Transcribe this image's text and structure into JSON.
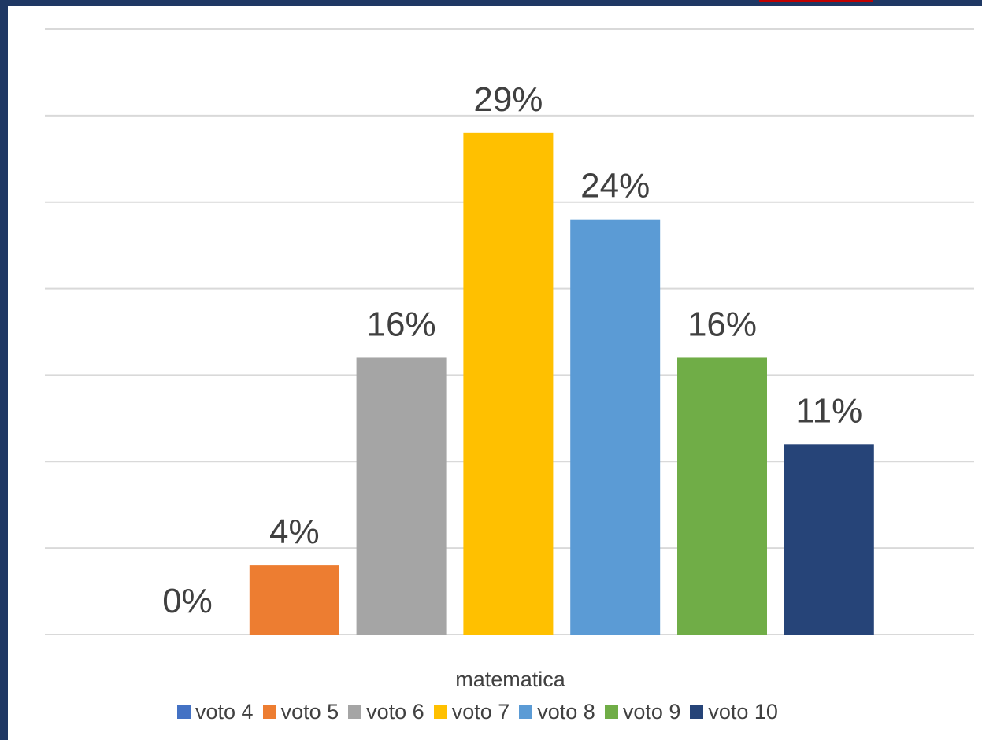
{
  "chart_data": {
    "type": "bar",
    "categories": [
      "voto 4",
      "voto 5",
      "voto 6",
      "voto 7",
      "voto 8",
      "voto 9",
      "voto 10"
    ],
    "values": [
      0,
      4,
      16,
      29,
      24,
      16,
      11
    ],
    "data_labels": [
      "0%",
      "4%",
      "16%",
      "29%",
      "24%",
      "16%",
      "11%"
    ],
    "colors": [
      "#4472c4",
      "#ed7d31",
      "#a5a5a5",
      "#ffc000",
      "#5b9bd5",
      "#70ad47",
      "#264478"
    ],
    "xlabel": "matematica",
    "ylim": [
      0,
      35
    ],
    "grid": true,
    "legend_position": "bottom",
    "y_axis_visible": false
  }
}
